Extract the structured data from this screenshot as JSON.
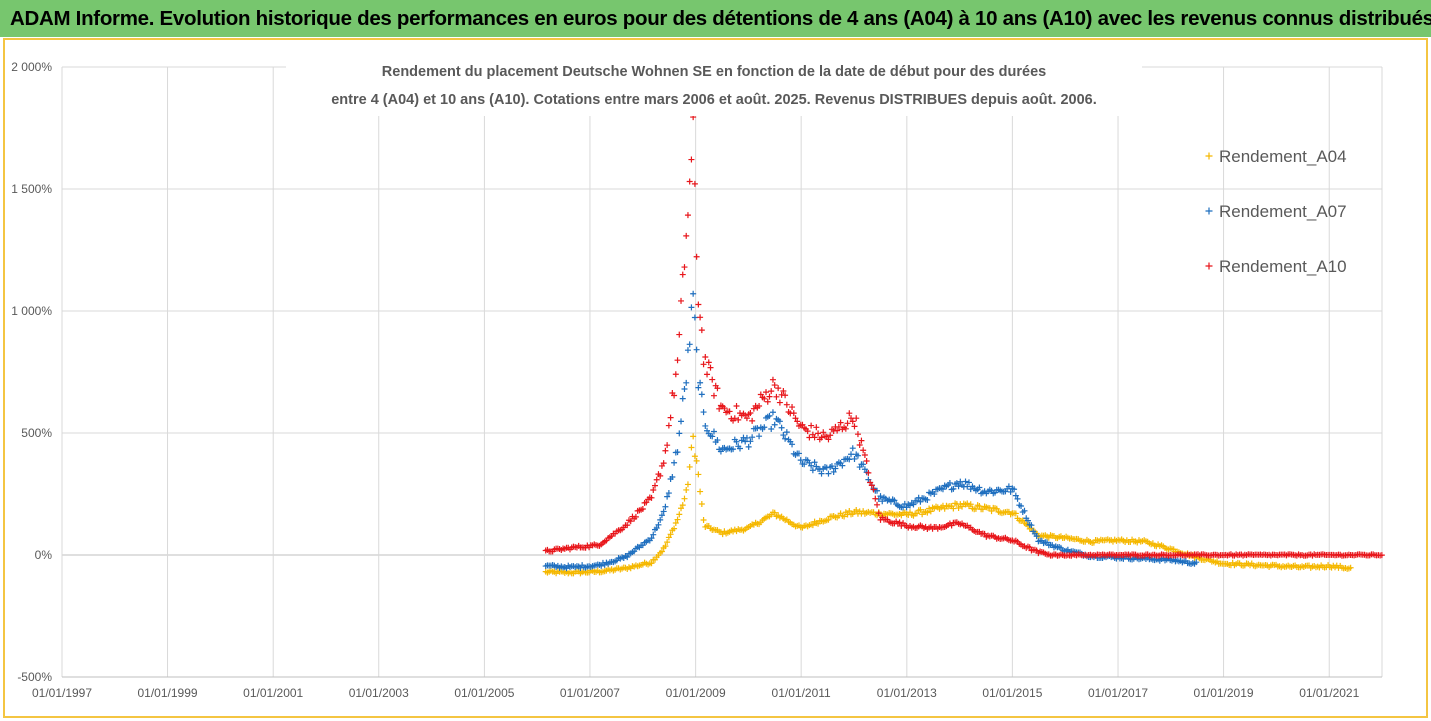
{
  "banner": {
    "title": "ADAM Informe. Evolution historique des performances en euros pour des détentions de 4 ans (A04) à 10 ans (A10) avec les revenus connus distribués"
  },
  "colors": {
    "banner": "#77c66e",
    "frame": "#f4c542",
    "A04": "#f5b800",
    "A07": "#1f6fbf",
    "A10": "#e8161b"
  },
  "chart_data": {
    "type": "scatter",
    "title_lines": [
      "Rendement du placement Deutsche Wohnen SE en fonction de la date de début pour des durées",
      "entre 4 (A04) et 10 ans (A10).  Cotations entre mars 2006 et août. 2025. Revenus DISTRIBUES depuis août. 2006."
    ],
    "xlabel": "",
    "ylabel": "",
    "x_ticks": [
      "01/01/1997",
      "01/01/1999",
      "01/01/2001",
      "01/01/2003",
      "01/01/2005",
      "01/01/2007",
      "01/01/2009",
      "01/01/2011",
      "01/01/2013",
      "01/01/2015",
      "01/01/2017",
      "01/01/2019",
      "01/01/2021"
    ],
    "xlim": [
      "1997-01-01",
      "2022-01-01"
    ],
    "y_ticks": [
      -500,
      0,
      500,
      1000,
      1500,
      2000
    ],
    "y_tick_labels": [
      "-500%",
      "0%",
      "500%",
      "1 000%",
      "1 500%",
      "2 000%"
    ],
    "ylim": [
      -500,
      2000
    ],
    "grid": true,
    "legend_position": "right",
    "series": [
      {
        "name": "Rendement_A04",
        "color": "#f5b800",
        "points": [
          [
            "2006-03-01",
            -70
          ],
          [
            "2006-09-01",
            -72
          ],
          [
            "2007-03-01",
            -68
          ],
          [
            "2007-09-01",
            -55
          ],
          [
            "2008-03-01",
            -30
          ],
          [
            "2008-06-01",
            30
          ],
          [
            "2008-09-01",
            150
          ],
          [
            "2008-11-01",
            260
          ],
          [
            "2008-12-15",
            480
          ],
          [
            "2009-01-15",
            350
          ],
          [
            "2009-03-01",
            120
          ],
          [
            "2009-07-01",
            90
          ],
          [
            "2010-01-01",
            110
          ],
          [
            "2010-07-01",
            170
          ],
          [
            "2011-01-01",
            110
          ],
          [
            "2011-07-01",
            150
          ],
          [
            "2012-01-01",
            175
          ],
          [
            "2012-07-01",
            170
          ],
          [
            "2013-01-01",
            165
          ],
          [
            "2013-07-01",
            185
          ],
          [
            "2014-01-01",
            205
          ],
          [
            "2014-07-01",
            190
          ],
          [
            "2015-01-01",
            175
          ],
          [
            "2015-07-01",
            80
          ],
          [
            "2016-01-01",
            70
          ],
          [
            "2016-07-01",
            55
          ],
          [
            "2017-01-01",
            60
          ],
          [
            "2017-07-01",
            55
          ],
          [
            "2018-01-01",
            25
          ],
          [
            "2018-07-01",
            -10
          ],
          [
            "2019-01-01",
            -35
          ],
          [
            "2019-07-01",
            -40
          ],
          [
            "2020-01-01",
            -45
          ],
          [
            "2020-07-01",
            -50
          ],
          [
            "2021-01-01",
            -45
          ],
          [
            "2021-06-01",
            -55
          ]
        ]
      },
      {
        "name": "Rendement_A07",
        "color": "#1f6fbf",
        "points": [
          [
            "2006-03-01",
            -45
          ],
          [
            "2006-09-01",
            -50
          ],
          [
            "2007-03-01",
            -42
          ],
          [
            "2007-09-01",
            -10
          ],
          [
            "2008-03-01",
            70
          ],
          [
            "2008-06-01",
            180
          ],
          [
            "2008-09-01",
            450
          ],
          [
            "2008-11-01",
            750
          ],
          [
            "2008-12-15",
            1050
          ],
          [
            "2009-01-15",
            750
          ],
          [
            "2009-03-01",
            550
          ],
          [
            "2009-07-01",
            430
          ],
          [
            "2010-01-01",
            470
          ],
          [
            "2010-07-01",
            560
          ],
          [
            "2011-01-01",
            380
          ],
          [
            "2011-07-01",
            340
          ],
          [
            "2012-01-01",
            420
          ],
          [
            "2012-07-01",
            230
          ],
          [
            "2013-01-01",
            200
          ],
          [
            "2013-07-01",
            250
          ],
          [
            "2014-01-01",
            300
          ],
          [
            "2014-07-01",
            260
          ],
          [
            "2015-01-01",
            270
          ],
          [
            "2015-07-01",
            60
          ],
          [
            "2016-01-01",
            20
          ],
          [
            "2016-07-01",
            -5
          ],
          [
            "2017-01-01",
            -10
          ],
          [
            "2017-07-01",
            -15
          ],
          [
            "2018-01-01",
            -20
          ],
          [
            "2018-07-01",
            -35
          ]
        ]
      },
      {
        "name": "Rendement_A10",
        "color": "#e8161b",
        "points": [
          [
            "2006-03-01",
            15
          ],
          [
            "2006-09-01",
            30
          ],
          [
            "2007-03-01",
            40
          ],
          [
            "2007-09-01",
            120
          ],
          [
            "2008-03-01",
            230
          ],
          [
            "2008-06-01",
            400
          ],
          [
            "2008-09-01",
            800
          ],
          [
            "2008-11-01",
            1350
          ],
          [
            "2008-12-15",
            1700
          ],
          [
            "2009-01-15",
            1100
          ],
          [
            "2009-03-01",
            800
          ],
          [
            "2009-07-01",
            600
          ],
          [
            "2010-01-01",
            560
          ],
          [
            "2010-07-01",
            700
          ],
          [
            "2011-01-01",
            520
          ],
          [
            "2011-07-01",
            480
          ],
          [
            "2012-01-01",
            570
          ],
          [
            "2012-07-01",
            150
          ],
          [
            "2013-01-01",
            120
          ],
          [
            "2013-07-01",
            110
          ],
          [
            "2014-01-01",
            130
          ],
          [
            "2014-07-01",
            80
          ],
          [
            "2015-01-01",
            60
          ],
          [
            "2015-07-01",
            10
          ],
          [
            "2016-01-01",
            0
          ],
          [
            "2016-07-01",
            0
          ],
          [
            "2017-01-01",
            0
          ],
          [
            "2018-01-01",
            0
          ],
          [
            "2019-01-01",
            0
          ],
          [
            "2020-01-01",
            0
          ],
          [
            "2021-01-01",
            0
          ],
          [
            "2022-01-01",
            0
          ]
        ]
      }
    ]
  }
}
